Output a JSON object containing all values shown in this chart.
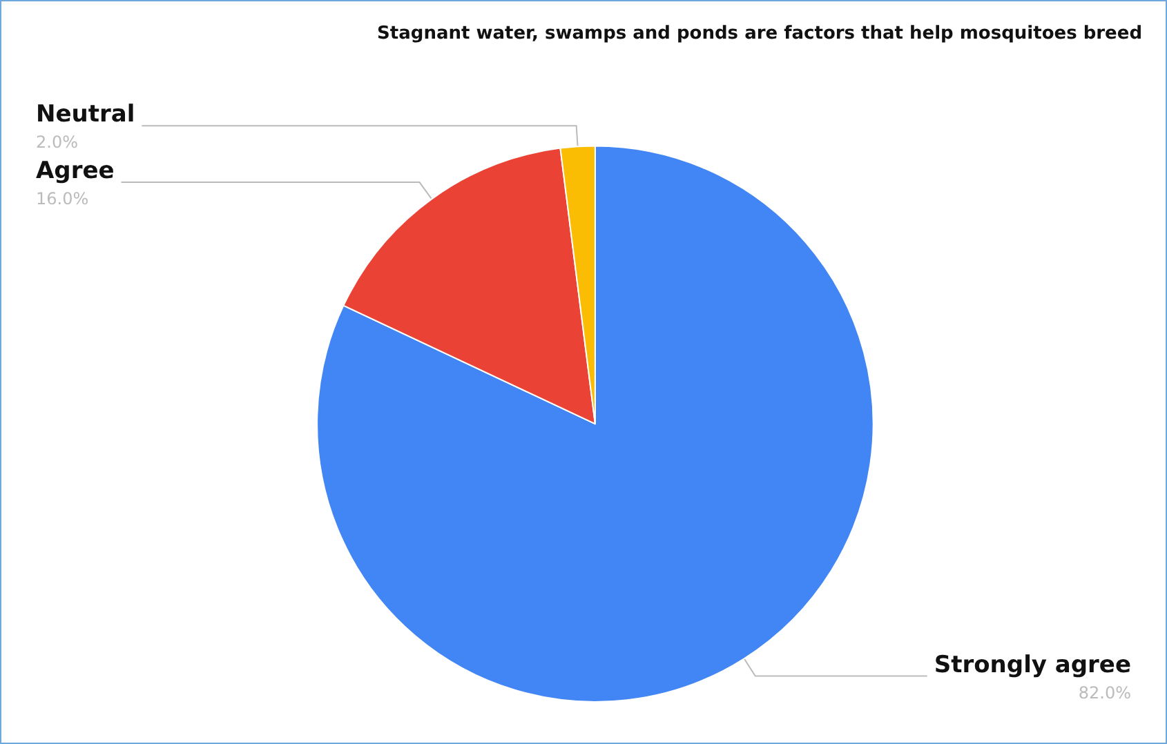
{
  "chart_data": {
    "type": "pie",
    "title": "Stagnant water, swamps and ponds are factors that help mosquitoes breed",
    "categories": [
      "Strongly agree",
      "Agree",
      "Neutral"
    ],
    "values": [
      82,
      16,
      2
    ],
    "colors": [
      "#4285f4",
      "#ea4335",
      "#fbbc04"
    ],
    "value_labels": [
      "82.0%",
      "16.0%",
      "2.0%"
    ],
    "legend": false
  }
}
